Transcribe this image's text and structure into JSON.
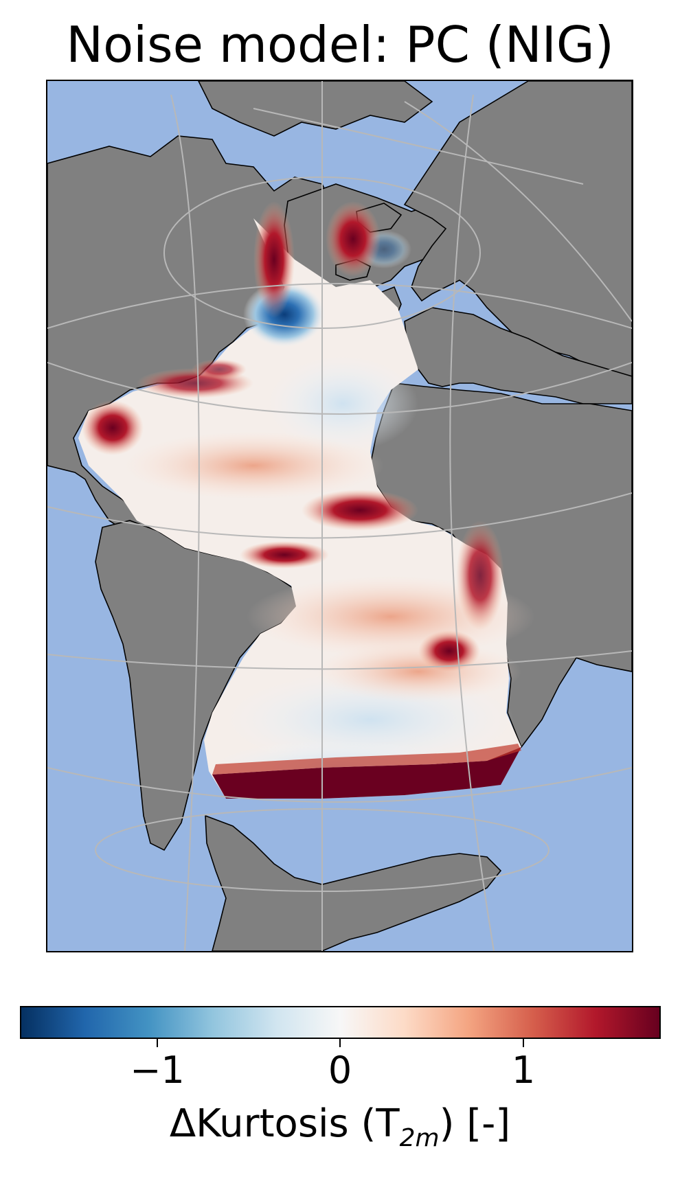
{
  "title": "Noise model: PC (NIG)",
  "colors": {
    "ocean": "#98b6e2",
    "land": "#808080",
    "coastline": "#000000",
    "graticule": "#b8b8b8"
  },
  "map": {
    "projection": "orthographic",
    "field": "ΔKurtosis of 2 m temperature over the Atlantic Ocean",
    "colormap": "RdBu_r"
  },
  "colorbar": {
    "range": [
      -1.8,
      1.8
    ],
    "ticks": [
      {
        "value": -1,
        "label": "−1"
      },
      {
        "value": 0,
        "label": "0"
      },
      {
        "value": 1,
        "label": "1"
      }
    ],
    "gradient": [
      "#053061",
      "#2166ac",
      "#4393c3",
      "#92c5de",
      "#d1e5f0",
      "#f7f7f7",
      "#fddbc7",
      "#f4a582",
      "#d6604d",
      "#b2182b",
      "#67001f"
    ],
    "label_main": "ΔKurtosis (T",
    "label_sub": "2m",
    "label_tail": ") [-]"
  }
}
